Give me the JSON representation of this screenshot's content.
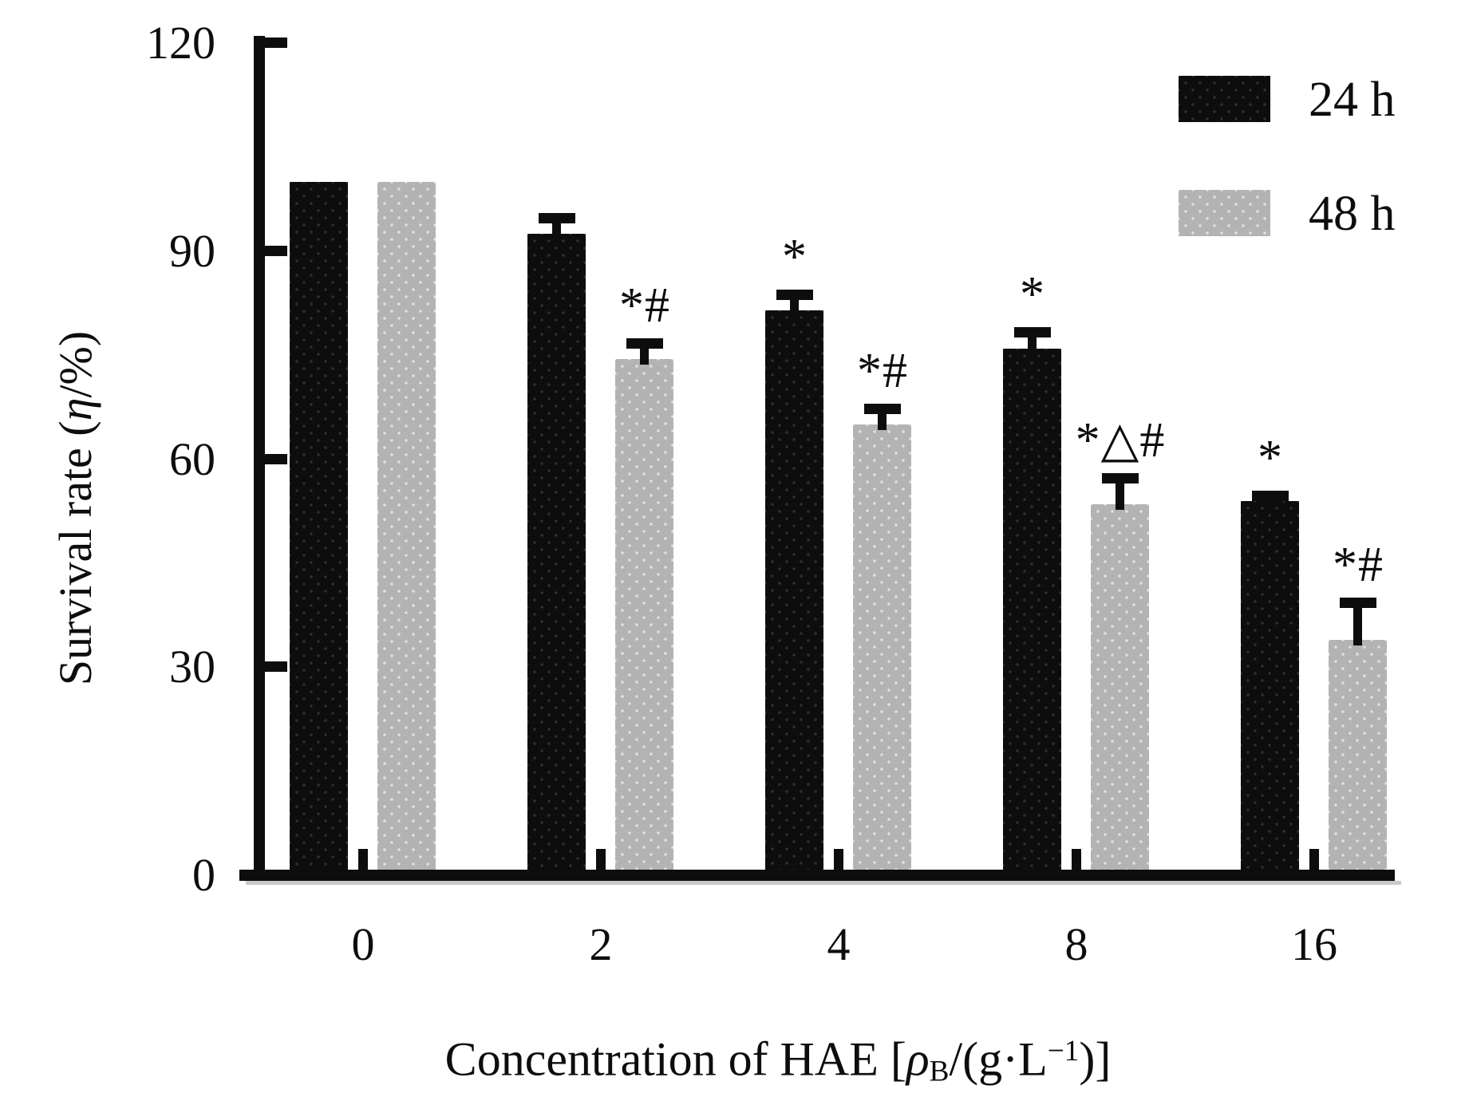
{
  "figure": {
    "y_axis": {
      "label_prefix": "Survival rate (",
      "label_eta": "η",
      "label_suffix": "/%)"
    },
    "x_axis": {
      "label_prefix": "Concentration of HAE [",
      "label_rho": "ρ",
      "label_rho_sub": "B",
      "label_mid": "/(g·L",
      "label_sup": "−1",
      "label_suffix": ")]"
    }
  },
  "chart_data": {
    "type": "bar",
    "title": "",
    "xlabel": "Concentration of HAE [ρB/(g·L−1)]",
    "ylabel": "Survival rate (η/%)",
    "categories": [
      "0",
      "2",
      "4",
      "8",
      "16"
    ],
    "yticks": [
      0,
      30,
      60,
      90,
      120
    ],
    "ylim": [
      0,
      120
    ],
    "grid": false,
    "legend_position": "top-right",
    "series": [
      {
        "name": "24 h",
        "color": "#0d0d0d",
        "values": [
          100,
          92.5,
          81.5,
          76,
          54
        ],
        "errors_plus": [
          0,
          3,
          3,
          3,
          1.5
        ],
        "annotations": [
          "",
          "",
          "*",
          "*",
          "*"
        ]
      },
      {
        "name": "48 h",
        "color": "#b3b3b3",
        "values": [
          100,
          74.5,
          65,
          53.5,
          34
        ],
        "errors_plus": [
          0,
          3,
          3,
          4.5,
          6
        ],
        "annotations": [
          "",
          "*#",
          "*#",
          "*△#",
          "*#"
        ]
      }
    ]
  }
}
